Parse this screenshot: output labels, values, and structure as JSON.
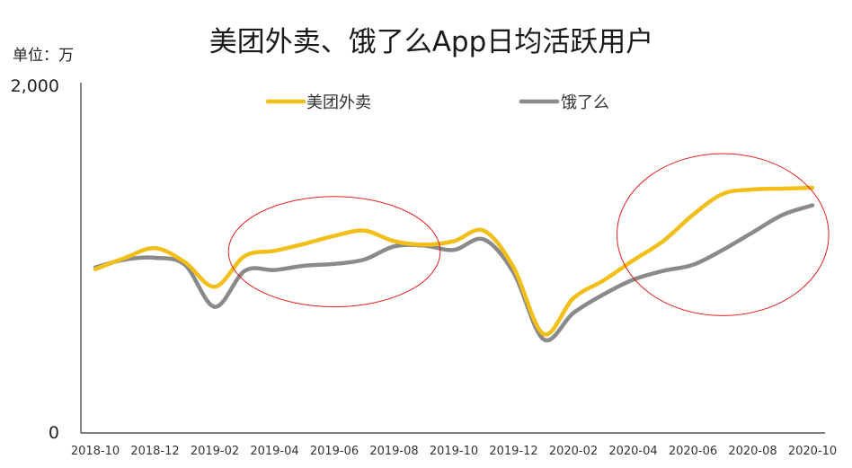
{
  "chart_data": {
    "type": "line",
    "title": "美团外卖、饿了么App日均活跃用户",
    "unit_label": "单位：万",
    "ylim": [
      0,
      2000
    ],
    "y_tick_labels": [
      "2,000",
      "0"
    ],
    "y_ticks": [
      2000,
      0
    ],
    "categories": [
      "2018-10",
      "2018-11",
      "2018-12",
      "2019-01",
      "2019-02",
      "2019-03",
      "2019-04",
      "2019-05",
      "2019-06",
      "2019-07",
      "2019-08",
      "2019-09",
      "2019-10",
      "2019-11",
      "2019-12",
      "2020-01",
      "2020-02",
      "2020-03",
      "2020-04",
      "2020-05",
      "2020-06",
      "2020-07",
      "2020-08",
      "2020-09",
      "2020-10"
    ],
    "x_tick_labels": [
      "2018-10",
      "2018-12",
      "2019-02",
      "2019-04",
      "2019-06",
      "2019-08",
      "2019-10",
      "2019-12",
      "2020-02",
      "2020-04",
      "2020-06",
      "2020-08",
      "2020-10"
    ],
    "legend_position": "top",
    "series": [
      {
        "name": "美团外卖",
        "color": "#f2bf19",
        "values": [
          935,
          1000,
          1055,
          975,
          835,
          1010,
          1040,
          1080,
          1125,
          1155,
          1095,
          1075,
          1095,
          1155,
          945,
          565,
          770,
          870,
          985,
          1095,
          1245,
          1365,
          1390,
          1395,
          1400
        ]
      },
      {
        "name": "饿了么",
        "color": "#8a8a8a",
        "values": [
          945,
          990,
          1000,
          960,
          720,
          925,
          930,
          955,
          965,
          990,
          1065,
          1070,
          1045,
          1105,
          915,
          535,
          685,
          790,
          875,
          925,
          960,
          1045,
          1145,
          1245,
          1300
        ]
      }
    ],
    "annotations": [
      {
        "type": "ellipse",
        "color": "#e02020",
        "covers": [
          "2019-03",
          "2019-09"
        ]
      },
      {
        "type": "ellipse",
        "color": "#e02020",
        "covers": [
          "2020-04",
          "2020-10"
        ]
      }
    ]
  }
}
